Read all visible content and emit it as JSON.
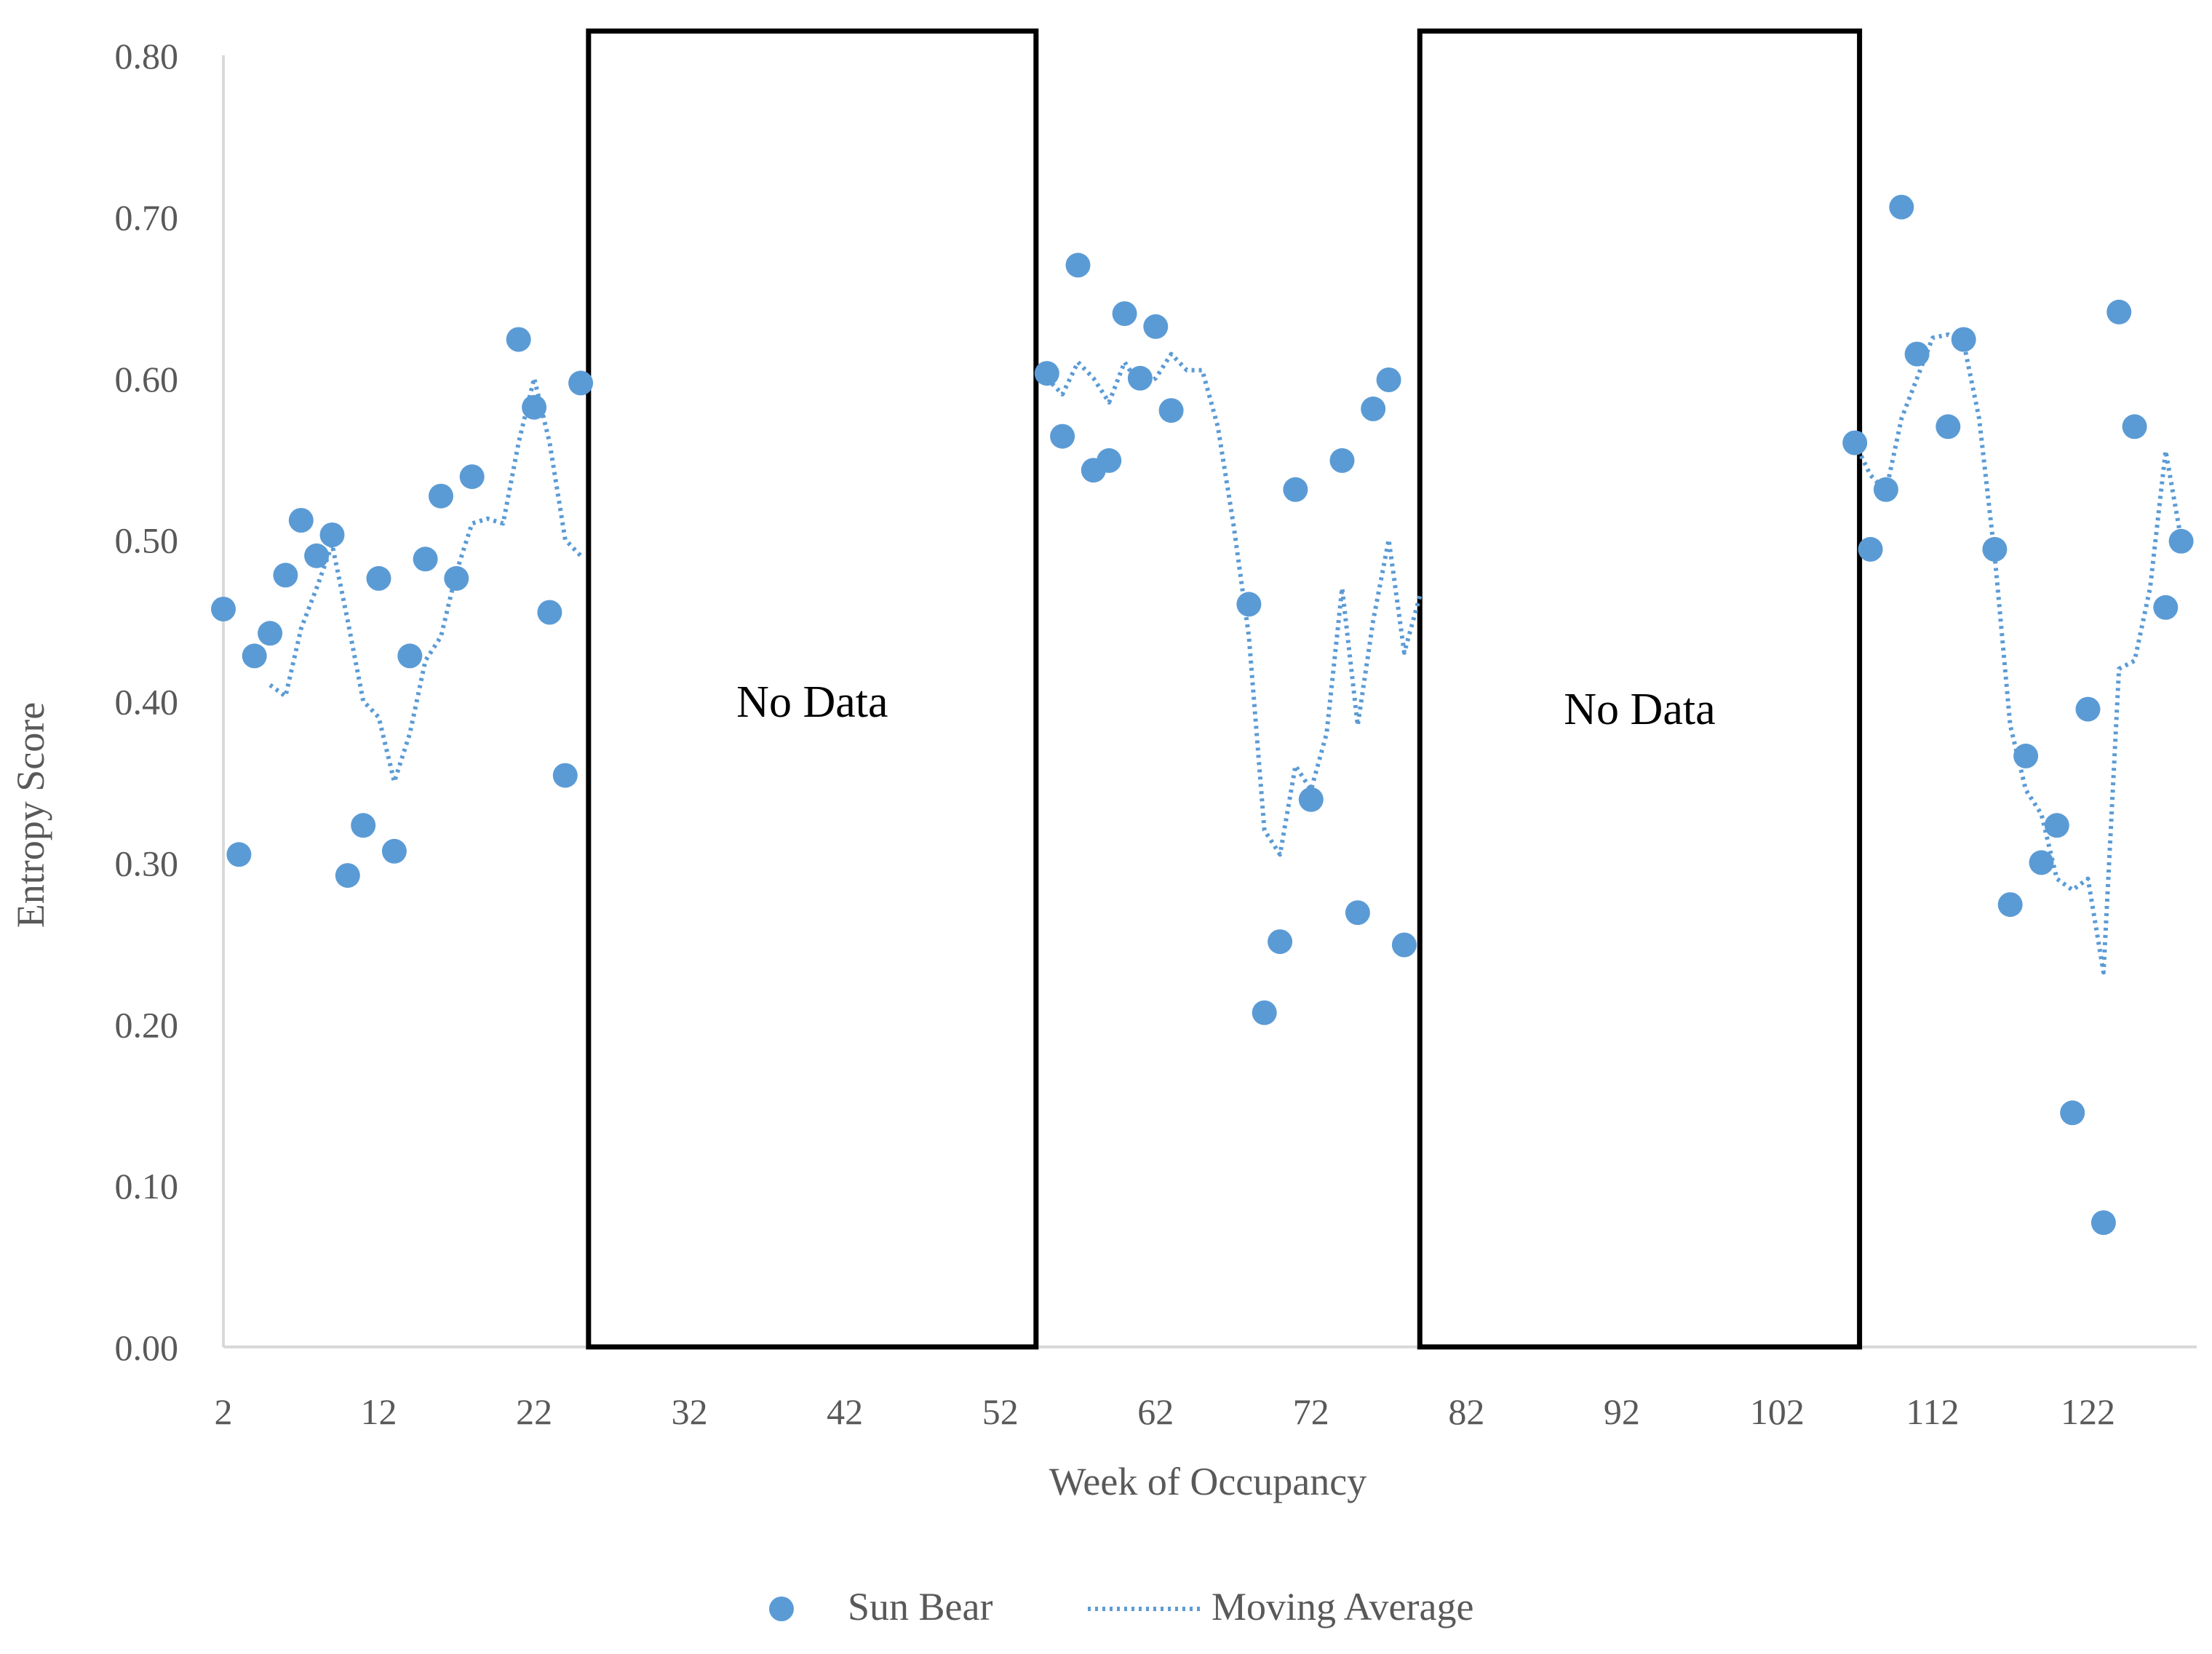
{
  "chart_data": {
    "type": "scatter",
    "title": "",
    "xlabel": "Week of Occupancy",
    "ylabel": "Entropy Score",
    "xlim": [
      2,
      129
    ],
    "ylim": [
      0,
      0.8
    ],
    "x_ticks": [
      2,
      12,
      22,
      32,
      42,
      52,
      62,
      72,
      82,
      92,
      102,
      112,
      122
    ],
    "y_ticks": [
      0.0,
      0.1,
      0.2,
      0.3,
      0.4,
      0.5,
      0.6,
      0.7,
      0.8
    ],
    "y_tick_labels": [
      "0.00",
      "0.10",
      "0.20",
      "0.30",
      "0.40",
      "0.50",
      "0.60",
      "0.70",
      "0.80"
    ],
    "legend_position": "bottom-center",
    "series": [
      {
        "name": "Sun Bear",
        "kind": "scatter",
        "color": "#5b9bd5",
        "points": [
          [
            2,
            0.457
          ],
          [
            3,
            0.305
          ],
          [
            4,
            0.428
          ],
          [
            5,
            0.442
          ],
          [
            6,
            0.478
          ],
          [
            7,
            0.512
          ],
          [
            8,
            0.49
          ],
          [
            9,
            0.503
          ],
          [
            10,
            0.292
          ],
          [
            11,
            0.323
          ],
          [
            12,
            0.476
          ],
          [
            13,
            0.307
          ],
          [
            14,
            0.428
          ],
          [
            15,
            0.488
          ],
          [
            16,
            0.527
          ],
          [
            17,
            0.476
          ],
          [
            18,
            0.539
          ],
          [
            21,
            0.624
          ],
          [
            22,
            0.582
          ],
          [
            23,
            0.455
          ],
          [
            24,
            0.354
          ],
          [
            25,
            0.597
          ],
          [
            55,
            0.603
          ],
          [
            56,
            0.564
          ],
          [
            57,
            0.67
          ],
          [
            58,
            0.543
          ],
          [
            59,
            0.549
          ],
          [
            60,
            0.64
          ],
          [
            61,
            0.6
          ],
          [
            62,
            0.632
          ],
          [
            63,
            0.58
          ],
          [
            68,
            0.46
          ],
          [
            69,
            0.207
          ],
          [
            70,
            0.251
          ],
          [
            71,
            0.531
          ],
          [
            72,
            0.339
          ],
          [
            74,
            0.549
          ],
          [
            75,
            0.269
          ],
          [
            76,
            0.581
          ],
          [
            77,
            0.599
          ],
          [
            78,
            0.249
          ],
          [
            107,
            0.56
          ],
          [
            108,
            0.494
          ],
          [
            109,
            0.531
          ],
          [
            110,
            0.706
          ],
          [
            111,
            0.615
          ],
          [
            113,
            0.57
          ],
          [
            114,
            0.624
          ],
          [
            116,
            0.494
          ],
          [
            117,
            0.274
          ],
          [
            118,
            0.366
          ],
          [
            119,
            0.3
          ],
          [
            120,
            0.323
          ],
          [
            121,
            0.145
          ],
          [
            122,
            0.395
          ],
          [
            123,
            0.077
          ],
          [
            124,
            0.641
          ],
          [
            125,
            0.57
          ],
          [
            127,
            0.458
          ],
          [
            128,
            0.499
          ]
        ]
      },
      {
        "name": "Moving Average",
        "kind": "line",
        "style": "dotted",
        "color": "#5b9bd5",
        "segments": [
          [
            [
              5,
              0.41
            ],
            [
              6,
              0.403
            ],
            [
              7,
              0.445
            ],
            [
              8,
              0.47
            ],
            [
              9,
              0.497
            ],
            [
              10,
              0.45
            ],
            [
              11,
              0.4
            ],
            [
              12,
              0.39
            ],
            [
              13,
              0.35
            ],
            [
              14,
              0.38
            ],
            [
              15,
              0.425
            ],
            [
              16,
              0.44
            ],
            [
              17,
              0.48
            ],
            [
              18,
              0.51
            ],
            [
              19,
              0.513
            ],
            [
              20,
              0.51
            ],
            [
              21,
              0.56
            ],
            [
              22,
              0.6
            ],
            [
              23,
              0.56
            ],
            [
              24,
              0.5
            ],
            [
              25,
              0.49
            ]
          ],
          [
            [
              55,
              0.6
            ],
            [
              56,
              0.59
            ],
            [
              57,
              0.61
            ],
            [
              58,
              0.6
            ],
            [
              59,
              0.585
            ],
            [
              60,
              0.61
            ],
            [
              61,
              0.595
            ],
            [
              62,
              0.6
            ],
            [
              63,
              0.615
            ],
            [
              64,
              0.605
            ],
            [
              65,
              0.605
            ],
            [
              66,
              0.57
            ],
            [
              67,
              0.51
            ],
            [
              68,
              0.44
            ],
            [
              69,
              0.32
            ],
            [
              70,
              0.305
            ],
            [
              71,
              0.36
            ],
            [
              72,
              0.345
            ],
            [
              73,
              0.38
            ],
            [
              74,
              0.47
            ],
            [
              75,
              0.385
            ],
            [
              76,
              0.45
            ],
            [
              77,
              0.5
            ],
            [
              78,
              0.43
            ],
            [
              79,
              0.465
            ]
          ],
          [
            [
              107,
              0.56
            ],
            [
              108,
              0.54
            ],
            [
              109,
              0.53
            ],
            [
              110,
              0.575
            ],
            [
              111,
              0.6
            ],
            [
              112,
              0.625
            ],
            [
              113,
              0.627
            ],
            [
              114,
              0.622
            ],
            [
              115,
              0.575
            ],
            [
              116,
              0.49
            ],
            [
              117,
              0.385
            ],
            [
              118,
              0.345
            ],
            [
              119,
              0.33
            ],
            [
              120,
              0.29
            ],
            [
              121,
              0.283
            ],
            [
              122,
              0.29
            ],
            [
              123,
              0.232
            ],
            [
              124,
              0.42
            ],
            [
              125,
              0.425
            ],
            [
              126,
              0.47
            ],
            [
              127,
              0.555
            ],
            [
              128,
              0.5
            ]
          ]
        ]
      }
    ],
    "annotations": [
      {
        "text": "No Data",
        "x_from": 25.5,
        "x_to": 54.3,
        "y_from": 0,
        "y_to": 0.815
      },
      {
        "text": "No Data",
        "x_from": 79.0,
        "x_to": 107.3,
        "y_from": 0,
        "y_to": 0.815
      }
    ]
  }
}
